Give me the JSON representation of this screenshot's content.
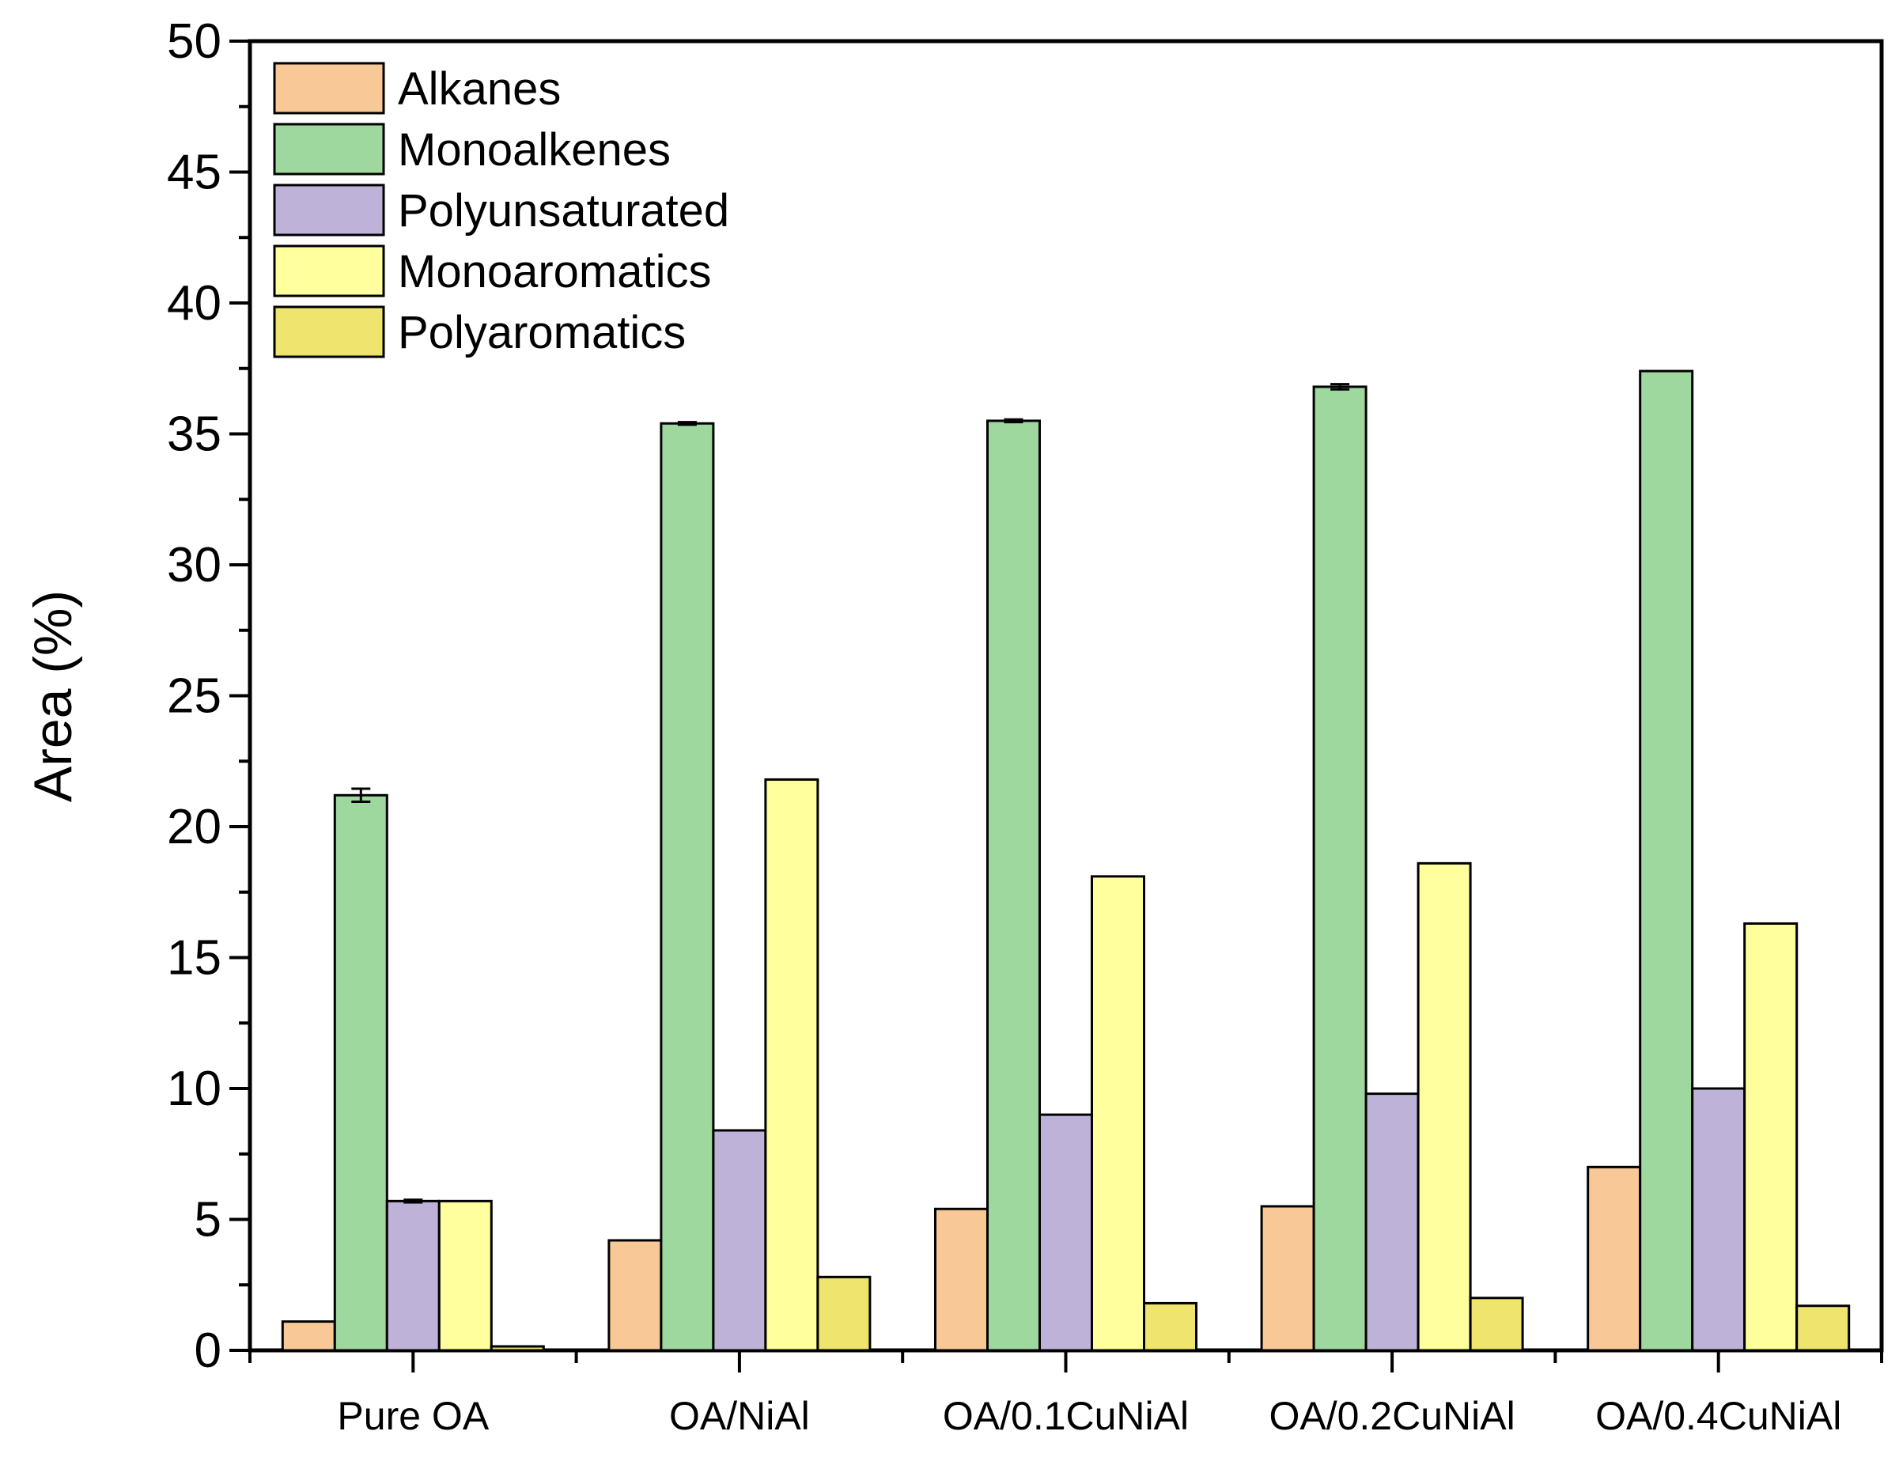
{
  "chart_data": {
    "type": "bar",
    "title": "",
    "xlabel": "",
    "ylabel": "Area (%)",
    "ylim": [
      0,
      50
    ],
    "yticks": [
      "0",
      "5",
      "10",
      "15",
      "20",
      "25",
      "30",
      "35",
      "40",
      "45",
      "50"
    ],
    "categories": [
      "Pure OA",
      "OA/NiAl",
      "OA/0.1CuNiAl",
      "OA/0.2CuNiAl",
      "OA/0.4CuNiAl"
    ],
    "legend_position": "top-left",
    "series": [
      {
        "name": "Alkanes",
        "color": "#F9C897",
        "values": [
          1.1,
          4.2,
          5.4,
          5.5,
          7.0
        ]
      },
      {
        "name": "Monoalkenes",
        "color": "#9ED89E",
        "values": [
          21.2,
          35.4,
          35.5,
          36.8,
          37.4
        ],
        "errors": [
          0.25,
          0.05,
          0.05,
          0.1,
          0.0
        ]
      },
      {
        "name": "Polyunsaturated",
        "color": "#BFB2D8",
        "values": [
          5.7,
          8.4,
          9.0,
          9.8,
          10.0
        ],
        "errors": [
          0.05,
          0,
          0,
          0,
          0
        ]
      },
      {
        "name": "Monoaromatics",
        "color": "#FFFF9E",
        "values": [
          5.7,
          21.8,
          18.1,
          18.6,
          16.3
        ]
      },
      {
        "name": "Polyaromatics",
        "color": "#EEE46E",
        "values": [
          0.15,
          2.8,
          1.8,
          2.0,
          1.7
        ]
      }
    ]
  }
}
